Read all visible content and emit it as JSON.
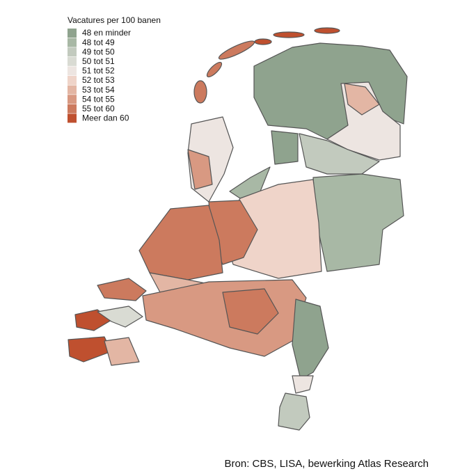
{
  "legend": {
    "title": "Vacatures per 100 banen",
    "items": [
      {
        "label": "48 en minder",
        "color": "#8fa38e"
      },
      {
        "label": "48 tot 49",
        "color": "#a8b8a5"
      },
      {
        "label": "49 tot 50",
        "color": "#c2cabe"
      },
      {
        "label": "50 tot 51",
        "color": "#d9dbd3"
      },
      {
        "label": "51 tot 52",
        "color": "#ede5e1"
      },
      {
        "label": "52 tot 53",
        "color": "#efd4c9"
      },
      {
        "label": "53 tot 54",
        "color": "#e3b6a4"
      },
      {
        "label": "54 tot 55",
        "color": "#d89982"
      },
      {
        "label": "55 tot 60",
        "color": "#cc7a5e"
      },
      {
        "label": "Meer dan 60",
        "color": "#bf502f"
      }
    ]
  },
  "source": "Bron: CBS, LISA, bewerking Atlas Research"
}
